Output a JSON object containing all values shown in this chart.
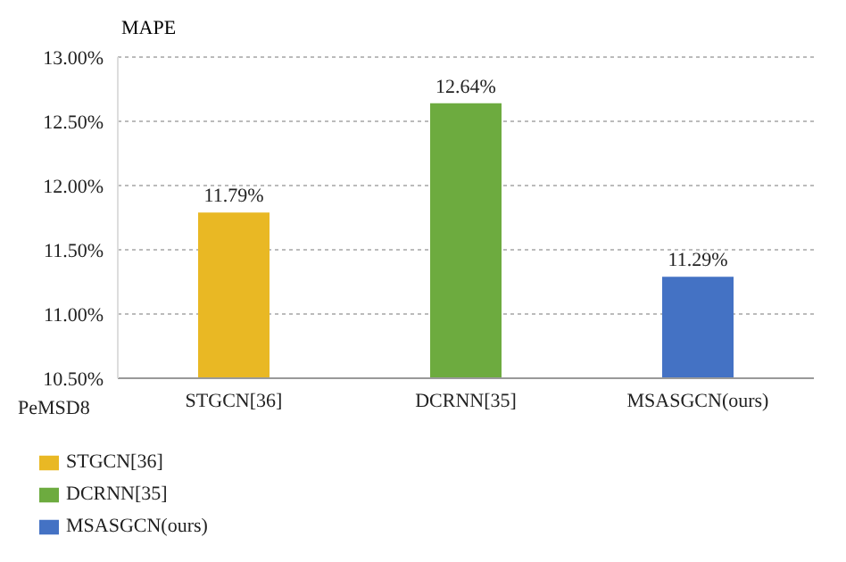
{
  "chart_data": {
    "type": "bar",
    "ylabel": "MAPE",
    "xlabel": "PeMSD8",
    "categories": [
      "STGCN[36]",
      "DCRNN[35]",
      "MSASGCN(ours)"
    ],
    "series": [
      {
        "name": "STGCN[36]",
        "color": "#e9b824",
        "values": [
          11.79,
          null,
          null
        ],
        "value_labels": [
          "11.79%",
          null,
          null
        ]
      },
      {
        "name": "DCRNN[35]",
        "color": "#6dab3f",
        "values": [
          null,
          12.64,
          null
        ],
        "value_labels": [
          null,
          "12.64%",
          null
        ]
      },
      {
        "name": "MSASGCN(ours)",
        "color": "#4472c4",
        "values": [
          null,
          null,
          11.29
        ],
        "value_labels": [
          null,
          null,
          "11.29%"
        ]
      }
    ],
    "ylim": [
      10.5,
      13.0
    ],
    "yticks": [
      {
        "value": 10.5,
        "label": "10.50%"
      },
      {
        "value": 11.0,
        "label": "11.00%"
      },
      {
        "value": 11.5,
        "label": "11.50%"
      },
      {
        "value": 12.0,
        "label": "12.00%"
      },
      {
        "value": 12.5,
        "label": "12.50%"
      },
      {
        "value": 13.0,
        "label": "13.00%"
      }
    ],
    "grid": "y",
    "legend": "bottom left"
  }
}
